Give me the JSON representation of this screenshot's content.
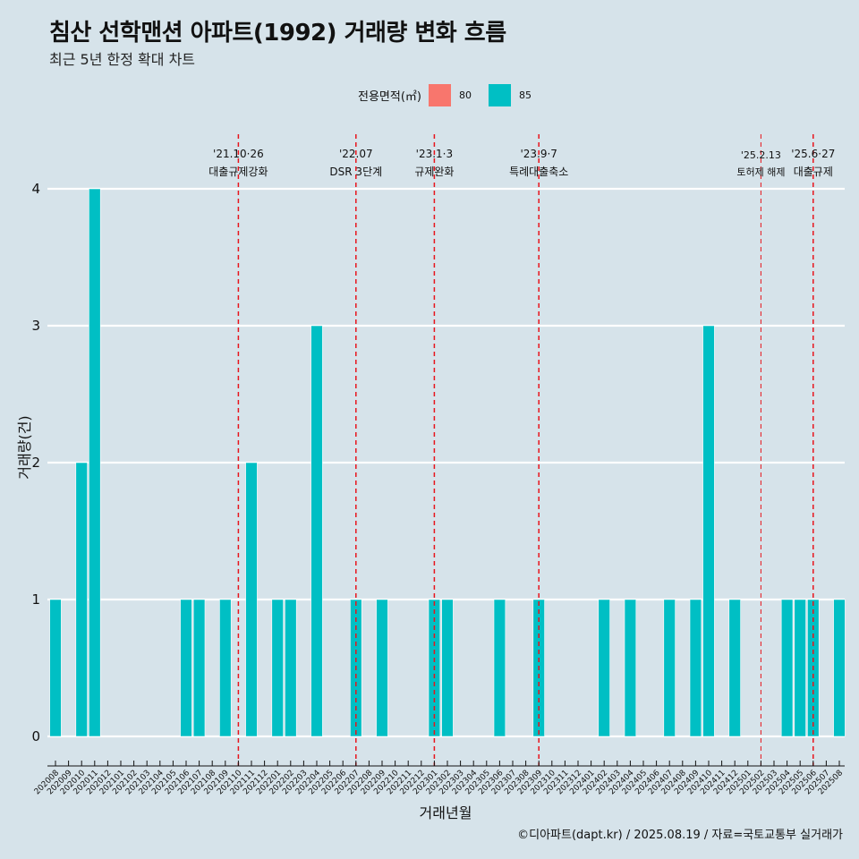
{
  "header": {
    "title": "침산 선학맨션 아파트(1992) 거래량 변화 흐름",
    "subtitle": "최근 5년 한정 확대 차트"
  },
  "legend": {
    "title": "전용면적(㎡)",
    "items": [
      {
        "label": "80",
        "color": "#f8766d"
      },
      {
        "label": "85",
        "color": "#00bfc4"
      }
    ]
  },
  "caption": "©디아파트(dapt.kr) / 2025.08.19 / 자료=국토교통부 실거래가",
  "chart_data": {
    "type": "bar",
    "xlabel": "거래년월",
    "ylabel": "거래량(건)",
    "ylim": [
      0,
      4
    ],
    "yticks": [
      "0",
      "1",
      "2",
      "3",
      "4"
    ],
    "grid": "horizontal",
    "categories": [
      "202008",
      "202009",
      "202010",
      "202011",
      "202012",
      "202101",
      "202102",
      "202103",
      "202104",
      "202105",
      "202106",
      "202107",
      "202108",
      "202109",
      "202110",
      "202111",
      "202112",
      "202201",
      "202202",
      "202203",
      "202204",
      "202205",
      "202206",
      "202207",
      "202208",
      "202209",
      "202210",
      "202211",
      "202212",
      "202301",
      "202302",
      "202303",
      "202304",
      "202305",
      "202306",
      "202307",
      "202308",
      "202309",
      "202310",
      "202311",
      "202312",
      "202401",
      "202402",
      "202403",
      "202404",
      "202405",
      "202406",
      "202407",
      "202408",
      "202409",
      "202410",
      "202411",
      "202412",
      "202501",
      "202502",
      "202503",
      "202504",
      "202505",
      "202506",
      "202507",
      "202508"
    ],
    "series": [
      {
        "name": "80",
        "color": "#f8766d",
        "values": [
          0,
          0,
          0,
          0,
          0,
          0,
          0,
          0,
          0,
          0,
          0,
          0,
          0,
          0,
          0,
          0,
          0,
          0,
          0,
          0,
          0,
          0,
          0,
          0,
          0,
          0,
          0,
          0,
          0,
          0,
          0,
          0,
          0,
          0,
          0,
          0,
          0,
          0,
          0,
          0,
          0,
          0,
          0,
          0,
          0,
          0,
          0,
          0,
          0,
          0,
          0,
          0,
          0,
          0,
          0,
          0,
          0,
          0,
          0,
          0,
          0
        ]
      },
      {
        "name": "85",
        "color": "#00bfc4",
        "values": [
          1,
          0,
          2,
          4,
          0,
          0,
          0,
          0,
          0,
          0,
          1,
          1,
          0,
          1,
          0,
          2,
          0,
          1,
          1,
          0,
          3,
          0,
          0,
          1,
          0,
          1,
          0,
          0,
          0,
          1,
          1,
          0,
          0,
          0,
          1,
          0,
          0,
          1,
          0,
          0,
          0,
          0,
          1,
          0,
          1,
          0,
          0,
          1,
          0,
          1,
          3,
          0,
          1,
          0,
          0,
          0,
          1,
          1,
          1,
          0,
          1
        ]
      }
    ],
    "events": [
      {
        "at": "202110",
        "date": "'21.10·26",
        "label": "대출규제강화"
      },
      {
        "at": "202207",
        "date": "'22.07",
        "label": "DSR 3단계"
      },
      {
        "at": "202301",
        "date": "'23.1·3",
        "label": "규제완화"
      },
      {
        "at": "202309",
        "date": "'23.9·7",
        "label": "특례대출축소"
      },
      {
        "at": "202502",
        "date": "'25.2.13",
        "label": "토허제 해제",
        "small": true
      },
      {
        "at": "202506",
        "date": "'25.6·27",
        "label": "대출규제"
      }
    ]
  }
}
